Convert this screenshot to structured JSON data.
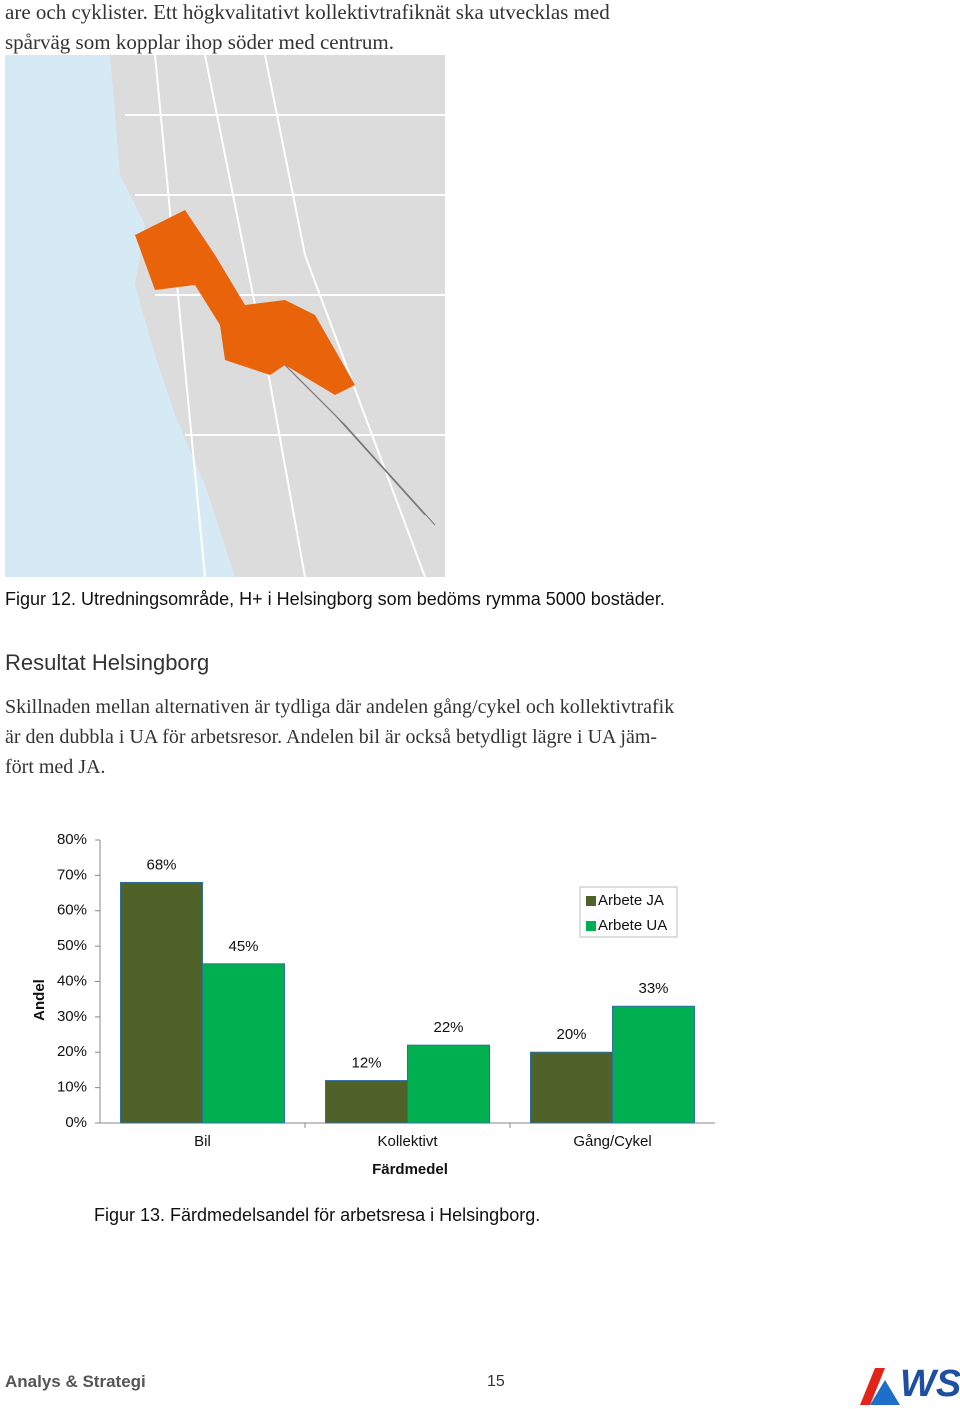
{
  "intro_lines": [
    "are och cyklister. Ett högkvalitativt kollektivtrafiknät ska utvecklas med",
    "spårväg som kopplar ihop söder med centrum."
  ],
  "figure_12_caption": "Figur 12. Utredningsområde, H+ i Helsingborg som bedöms rymma 5000 bostäder.",
  "section_heading": "Resultat Helsingborg",
  "paragraph_lines": [
    "Skillnaden mellan alternativen är tydliga där andelen gång/cykel och kollektivtrafik",
    "är den dubbla i UA för arbetsresor. Andelen bil är också betydligt lägre i UA jäm-",
    "fört med JA."
  ],
  "chart_data": {
    "type": "bar",
    "categories": [
      "Bil",
      "Kollektivt",
      "Gång/Cykel"
    ],
    "series": [
      {
        "name": "Arbete JA",
        "color": "#4f6228",
        "values": [
          68,
          12,
          20
        ],
        "value_labels": [
          "68%",
          "12%",
          "20%"
        ]
      },
      {
        "name": "Arbete UA",
        "color": "#00b050",
        "values": [
          45,
          22,
          33
        ],
        "value_labels": [
          "45%",
          "22%",
          "33%"
        ]
      }
    ],
    "ylim": [
      0,
      80
    ],
    "yticks": [
      {
        "value": 0,
        "label": "0%"
      },
      {
        "value": 10,
        "label": "10%"
      },
      {
        "value": 20,
        "label": "20%"
      },
      {
        "value": 30,
        "label": "30%"
      },
      {
        "value": 40,
        "label": "40%"
      },
      {
        "value": 50,
        "label": "50%"
      },
      {
        "value": 60,
        "label": "60%"
      },
      {
        "value": 70,
        "label": "70%"
      },
      {
        "value": 80,
        "label": "80%"
      }
    ],
    "y_label": "Andel",
    "x_label": "Färdmedel",
    "legend": "upper right",
    "grid": false
  },
  "figure_13_caption": "Figur 13. Färdmedelsandel för arbetsresa i Helsingborg.",
  "footer": {
    "left": "Analys & Strategi",
    "page_number": "15",
    "logo": "WS"
  }
}
